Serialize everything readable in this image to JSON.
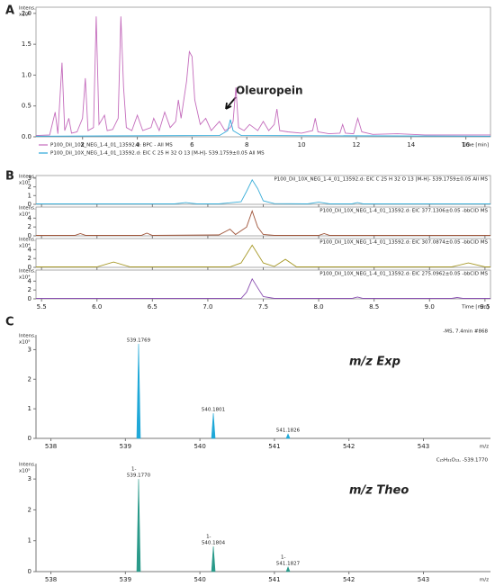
{
  "panel_labels": [
    "A",
    "B",
    "C"
  ],
  "chart_data": [
    {
      "type": "line",
      "y_label": "Intens.",
      "y_unit": "x10⁸",
      "x_label": "Time [min]",
      "annotation": "Oleuropein",
      "xlim": [
        0.3,
        16.9
      ],
      "xticks": [
        2,
        4,
        6,
        8,
        10,
        12,
        14,
        16
      ],
      "ylim": [
        0,
        2.1
      ],
      "yticks": [
        {
          "value": 0,
          "label": "0.0"
        },
        0.5,
        {
          "value": 1,
          "label": "1.0"
        },
        1.5,
        {
          "value": 2,
          "label": "2.0"
        }
      ],
      "series": [
        {
          "name": "P100_Dil_10X_NEG_1-4_01_13592.d: BPC - All MS",
          "color": "#c46cbc",
          "x": [
            0.3,
            0.8,
            1.0,
            1.1,
            1.25,
            1.35,
            1.5,
            1.6,
            1.8,
            2.0,
            2.1,
            2.2,
            2.4,
            2.5,
            2.6,
            2.8,
            2.9,
            3.1,
            3.3,
            3.4,
            3.5,
            3.6,
            3.8,
            4.0,
            4.2,
            4.5,
            4.6,
            4.8,
            5.0,
            5.2,
            5.4,
            5.5,
            5.6,
            5.8,
            5.9,
            6.0,
            6.1,
            6.3,
            6.5,
            6.7,
            7.0,
            7.2,
            7.4,
            7.5,
            7.6,
            7.7,
            7.9,
            8.1,
            8.4,
            8.6,
            8.8,
            9.0,
            9.1,
            9.2,
            9.5,
            10.0,
            10.4,
            10.5,
            10.6,
            11.0,
            11.4,
            11.5,
            11.6,
            11.9,
            12.05,
            12.2,
            12.6,
            13.5,
            14.5,
            15.5,
            16.9
          ],
          "values": [
            0.02,
            0.03,
            0.4,
            0.05,
            1.2,
            0.1,
            0.3,
            0.06,
            0.08,
            0.3,
            0.95,
            0.1,
            0.15,
            1.95,
            0.2,
            0.35,
            0.1,
            0.12,
            0.3,
            1.95,
            0.8,
            0.15,
            0.1,
            0.35,
            0.1,
            0.15,
            0.3,
            0.1,
            0.4,
            0.15,
            0.25,
            0.6,
            0.3,
            0.9,
            1.38,
            1.3,
            0.6,
            0.2,
            0.3,
            0.1,
            0.25,
            0.1,
            0.15,
            0.25,
            0.8,
            0.15,
            0.1,
            0.2,
            0.1,
            0.25,
            0.1,
            0.2,
            0.45,
            0.1,
            0.08,
            0.06,
            0.1,
            0.3,
            0.08,
            0.05,
            0.06,
            0.2,
            0.06,
            0.05,
            0.3,
            0.08,
            0.04,
            0.05,
            0.03,
            0.03,
            0.03
          ]
        },
        {
          "name": "P100_Dil_10X_NEG_1-4_01_13592.d: EIC C 25 H 32 O 13 [M-H]- 539.1759±0.05 All MS",
          "color": "#2aa7d8",
          "x": [
            0.3,
            7.0,
            7.3,
            7.4,
            7.5,
            7.8,
            16.9
          ],
          "values": [
            0.01,
            0.02,
            0.1,
            0.28,
            0.1,
            0.02,
            0.01
          ]
        }
      ]
    },
    {
      "type": "line",
      "y_label": "Intens.",
      "y_unit": "x10⁵",
      "title": "P100_Dil_10X_NEG_1-4_01_13592.d: EIC C 25 H 32 O 13 [M-H]- 539.1759±0.05 All MS",
      "xlim": [
        5.45,
        9.55
      ],
      "ylim": [
        0,
        3.3
      ],
      "yticks": [
        0,
        1,
        2,
        3
      ],
      "series": [
        {
          "color": "#3aaed8",
          "x": [
            5.45,
            6.7,
            6.8,
            6.9,
            7.1,
            7.3,
            7.35,
            7.4,
            7.45,
            7.5,
            7.6,
            7.9,
            8.0,
            8.1,
            8.3,
            8.35,
            8.4,
            9.55
          ],
          "values": [
            0.05,
            0.05,
            0.2,
            0.05,
            0.05,
            0.3,
            1.5,
            2.8,
            1.8,
            0.4,
            0.08,
            0.05,
            0.25,
            0.05,
            0.05,
            0.2,
            0.05,
            0.05
          ]
        }
      ]
    },
    {
      "type": "line",
      "y_label": "Intens.",
      "y_unit": "x10⁴",
      "title": "P100_Dil_10X_NEG_1-4_01_13592.d: EIC 377.1306±0.05 -bbCID MS",
      "xlim": [
        5.45,
        9.55
      ],
      "ylim": [
        0,
        6.5
      ],
      "yticks": [
        0,
        2,
        4
      ],
      "series": [
        {
          "color": "#a0553a",
          "x": [
            5.45,
            5.8,
            5.85,
            5.9,
            6.4,
            6.45,
            6.5,
            7.1,
            7.2,
            7.25,
            7.35,
            7.4,
            7.45,
            7.5,
            7.6,
            8.0,
            8.05,
            8.1,
            9.55
          ],
          "values": [
            0.1,
            0.1,
            0.5,
            0.1,
            0.1,
            0.6,
            0.1,
            0.2,
            1.5,
            0.3,
            2.0,
            5.6,
            2.0,
            0.3,
            0.1,
            0.1,
            0.5,
            0.1,
            0.1
          ]
        }
      ]
    },
    {
      "type": "line",
      "y_label": "Intens.",
      "y_unit": "x10⁴",
      "title": "P100_Dil_10X_NEG_1-4_01_13592.d: EIC 307.0874±0.05 -bbCID MS",
      "xlim": [
        5.45,
        9.55
      ],
      "ylim": [
        0,
        6.5
      ],
      "yticks": [
        0,
        2,
        4
      ],
      "series": [
        {
          "color": "#a89a2a",
          "x": [
            5.45,
            6.0,
            6.15,
            6.3,
            7.2,
            7.3,
            7.4,
            7.5,
            7.6,
            7.7,
            7.8,
            9.2,
            9.35,
            9.5,
            9.55
          ],
          "values": [
            0.1,
            0.1,
            1.2,
            0.1,
            0.1,
            1.0,
            5.0,
            1.0,
            0.2,
            1.8,
            0.1,
            0.1,
            1.0,
            0.1,
            0.1
          ]
        }
      ]
    },
    {
      "type": "line",
      "y_label": "Intens.",
      "y_unit": "x10⁴",
      "title": "P100_Dil_10X_NEG_1-4_01_13592.d: EIC 275.0962±0.05 -bbCID MS",
      "x_label": "Time [min]",
      "xlim": [
        5.45,
        9.55
      ],
      "xticks": [
        5.5,
        {
          "value": 6,
          "label": "6.0"
        },
        6.5,
        {
          "value": 7,
          "label": "7.0"
        },
        7.5,
        {
          "value": 8,
          "label": "8.0"
        },
        8.5,
        {
          "value": 9,
          "label": "9.0"
        },
        9.5
      ],
      "ylim": [
        0,
        6.5
      ],
      "yticks": [
        0,
        2,
        4
      ],
      "series": [
        {
          "color": "#8a4fb0",
          "x": [
            5.45,
            7.3,
            7.35,
            7.4,
            7.45,
            7.5,
            7.6,
            8.3,
            8.35,
            8.4,
            9.2,
            9.25,
            9.3,
            9.55
          ],
          "values": [
            0.1,
            0.1,
            1.5,
            4.5,
            2.5,
            0.5,
            0.1,
            0.1,
            0.4,
            0.1,
            0.1,
            0.3,
            0.1,
            0.1
          ]
        }
      ]
    },
    {
      "type": "spectrum",
      "y_label": "Intens.",
      "y_unit": "x10⁵",
      "x_label": "m/z",
      "header": "-MS, 7.4min #868",
      "annotation": "m/z Exp",
      "xlim": [
        537.8,
        543.9
      ],
      "xticks": [
        538,
        539,
        540,
        541,
        542,
        543
      ],
      "ylim": [
        0,
        3.5
      ],
      "yticks": [
        0,
        1,
        2,
        3
      ],
      "color": "#1fa8d8",
      "x": [
        539.1769,
        540.1801,
        541.1826
      ],
      "x_labels": [
        "539.1769",
        "540.1801",
        "541.1826"
      ],
      "values": [
        3.2,
        0.85,
        0.15
      ]
    },
    {
      "type": "spectrum",
      "y_label": "Intens.",
      "y_unit": "x10⁵",
      "x_label": "m/z",
      "header": "C₂₅H₃₁O₁₃, -539.1770",
      "annotation": "m/z Theo",
      "xlim": [
        537.8,
        543.9
      ],
      "xticks": [
        538,
        539,
        540,
        541,
        542,
        543
      ],
      "ylim": [
        0,
        3.5
      ],
      "yticks": [
        0,
        1,
        2,
        3
      ],
      "color": "#2a9a8a",
      "x": [
        539.177,
        540.1804,
        541.1827
      ],
      "x_labels": [
        "539.1770",
        "540.1804",
        "541.1827"
      ],
      "peak_labels": [
        "1-",
        "1-",
        "1-"
      ],
      "values": [
        3.0,
        0.82,
        0.15
      ]
    }
  ]
}
